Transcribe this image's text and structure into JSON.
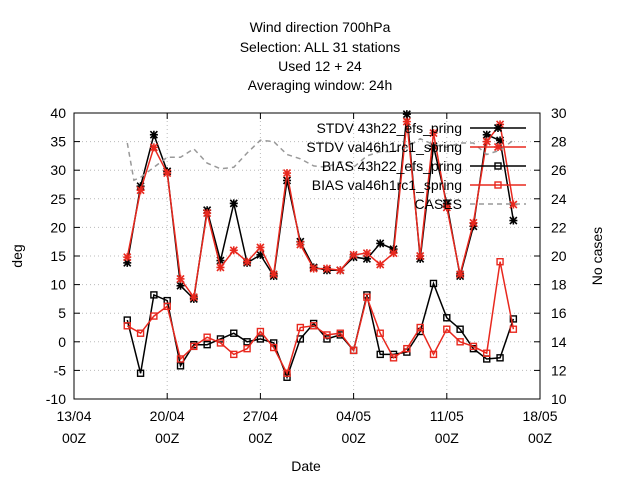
{
  "chart_data": {
    "type": "line",
    "title_lines": [
      "Wind direction 700hPa",
      "Selection: ALL     31 stations",
      "Used  12  + 24",
      "Averaging window: 24h"
    ],
    "xlabel": "Date",
    "ylabel": "deg",
    "y2label": "No cases",
    "xlim": [
      0,
      35
    ],
    "x_ticks": [
      {
        "x": 0,
        "line1": "13/04",
        "line2": "00Z"
      },
      {
        "x": 7,
        "line1": "20/04",
        "line2": "00Z"
      },
      {
        "x": 14,
        "line1": "27/04",
        "line2": "00Z"
      },
      {
        "x": 21,
        "line1": "04/05",
        "line2": "00Z"
      },
      {
        "x": 28,
        "line1": "11/05",
        "line2": "00Z"
      },
      {
        "x": 35,
        "line1": "18/05",
        "line2": "00Z"
      }
    ],
    "ylim": [
      -10,
      40
    ],
    "y_ticks": [
      -10,
      -5,
      0,
      5,
      10,
      15,
      20,
      25,
      30,
      35,
      40
    ],
    "y2lim": [
      10,
      30
    ],
    "y2_ticks": [
      10,
      12,
      14,
      16,
      18,
      20,
      22,
      24,
      26,
      28,
      30
    ],
    "x": [
      4,
      5,
      6,
      7,
      8,
      9,
      10,
      11,
      12,
      13,
      14,
      15,
      16,
      17,
      18,
      19,
      20,
      21,
      22,
      23,
      24,
      25,
      26,
      27,
      28,
      29,
      30,
      31,
      32,
      33
    ],
    "series": [
      {
        "name": "STDV 43h22_efs_pring",
        "color": "#000000",
        "marker": "star",
        "axis": "y",
        "values": [
          13.8,
          27.2,
          36.2,
          29.8,
          9.8,
          7.5,
          23,
          14.2,
          24.2,
          13.8,
          15.2,
          11.5,
          28.2,
          17.5,
          13.0,
          12.5,
          12.5,
          14.8,
          14.5,
          17.2,
          16.2,
          39.8,
          14.5,
          34.2,
          24.2,
          11.5,
          20.2,
          36.2,
          35.2,
          21.2
        ]
      },
      {
        "name": "STDV val46h1rc1_spring",
        "color": "#e8281e",
        "marker": "star",
        "axis": "y",
        "values": [
          14.8,
          26.5,
          34.0,
          29.5,
          11.0,
          7.8,
          22.5,
          13.0,
          16.0,
          14.0,
          16.5,
          11.8,
          29.5,
          17.0,
          12.8,
          12.8,
          12.5,
          15.2,
          15.5,
          13.5,
          15.5,
          38.5,
          15.0,
          36.5,
          23.5,
          11.8,
          20.8,
          35.0,
          38.0,
          24.0
        ]
      },
      {
        "name": "BIAS 43h22_efs_pring",
        "color": "#000000",
        "marker": "square",
        "axis": "y",
        "values": [
          3.8,
          -5.5,
          8.2,
          7.2,
          -4.2,
          -0.5,
          -0.5,
          0.5,
          1.5,
          0.0,
          0.5,
          -0.2,
          -6.2,
          0.5,
          3.2,
          0.5,
          1.2,
          -1.5,
          8.2,
          -2.2,
          -2.2,
          -1.8,
          1.8,
          10.2,
          4.2,
          2.2,
          -1.2,
          -3.0,
          -2.8,
          4.0
        ]
      },
      {
        "name": "BIAS val46h1rc1_spring",
        "color": "#e8281e",
        "marker": "square",
        "axis": "y",
        "values": [
          2.8,
          1.5,
          4.5,
          6.2,
          -3.0,
          -0.8,
          0.8,
          -0.2,
          -2.2,
          -1.2,
          1.8,
          -1.0,
          -5.5,
          2.5,
          2.8,
          1.2,
          1.5,
          -1.5,
          7.8,
          1.5,
          -2.8,
          -1.2,
          2.5,
          -2.2,
          2.2,
          0.0,
          -0.8,
          -2.0,
          14.0,
          2.2
        ]
      },
      {
        "name": "CASES",
        "color": "#999999",
        "dashed": true,
        "axis": "y2",
        "x": [
          4,
          4.5,
          5,
          6,
          7,
          8,
          9,
          10,
          11,
          12,
          13,
          14,
          15,
          16,
          17,
          18,
          19,
          20,
          21,
          22,
          23,
          24,
          25,
          26,
          27,
          28,
          29,
          30,
          31,
          32,
          33
        ],
        "values": [
          27.9,
          25.3,
          25.5,
          26.2,
          26.9,
          26.9,
          27.5,
          26.5,
          26.1,
          26.2,
          27.2,
          28.1,
          28.0,
          27.1,
          26.8,
          26.3,
          26.2,
          26.6,
          26.2,
          27.0,
          27.3,
          27.3,
          27.6,
          28.2,
          27.8,
          27.6,
          27.9,
          27.9,
          27.1,
          27.4,
          28.1
        ]
      }
    ]
  }
}
